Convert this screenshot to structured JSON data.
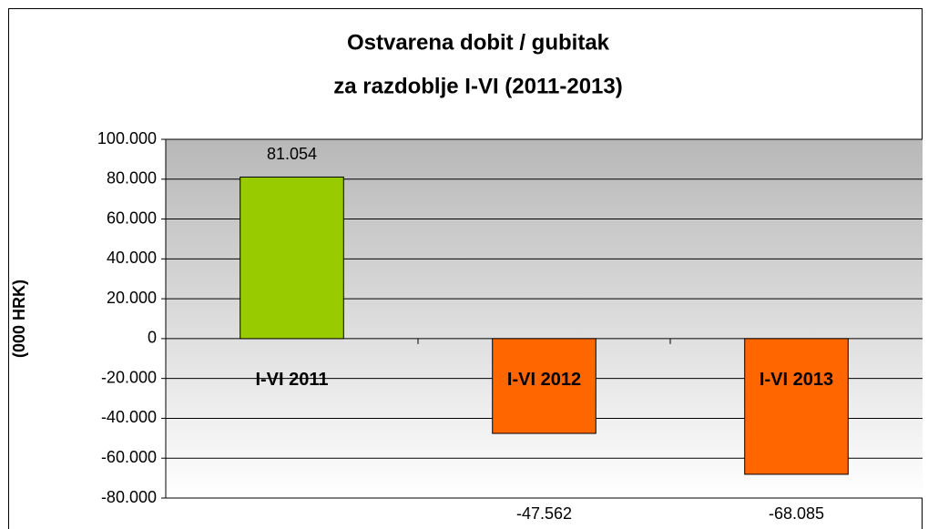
{
  "chart_data": {
    "type": "bar",
    "title": [
      "Ostvarena dobit / gubitak",
      "za razdoblje I-VI (2011-2013)"
    ],
    "y_label": "(000 HRK)",
    "categories": [
      "I-VI 2011",
      "I-VI 2012",
      "I-VI 2013"
    ],
    "values": [
      81054,
      -47562,
      -68085
    ],
    "value_labels": [
      "81.054",
      "-47.562",
      "-68.085"
    ],
    "colors": [
      "#99cc00",
      "#ff6600",
      "#ff6600"
    ],
    "ylim": [
      -80000,
      100000
    ],
    "yticks": [
      {
        "value": -80000,
        "label": "-80.000"
      },
      {
        "value": -60000,
        "label": "-60.000"
      },
      {
        "value": -40000,
        "label": "-40.000"
      },
      {
        "value": -20000,
        "label": "-20.000"
      },
      0,
      {
        "value": 20000,
        "label": "20.000"
      },
      {
        "value": 40000,
        "label": "40.000"
      },
      {
        "value": 60000,
        "label": "60.000"
      },
      {
        "value": 80000,
        "label": "80.000"
      },
      {
        "value": 100000,
        "label": "100.000"
      }
    ],
    "grid": true
  }
}
